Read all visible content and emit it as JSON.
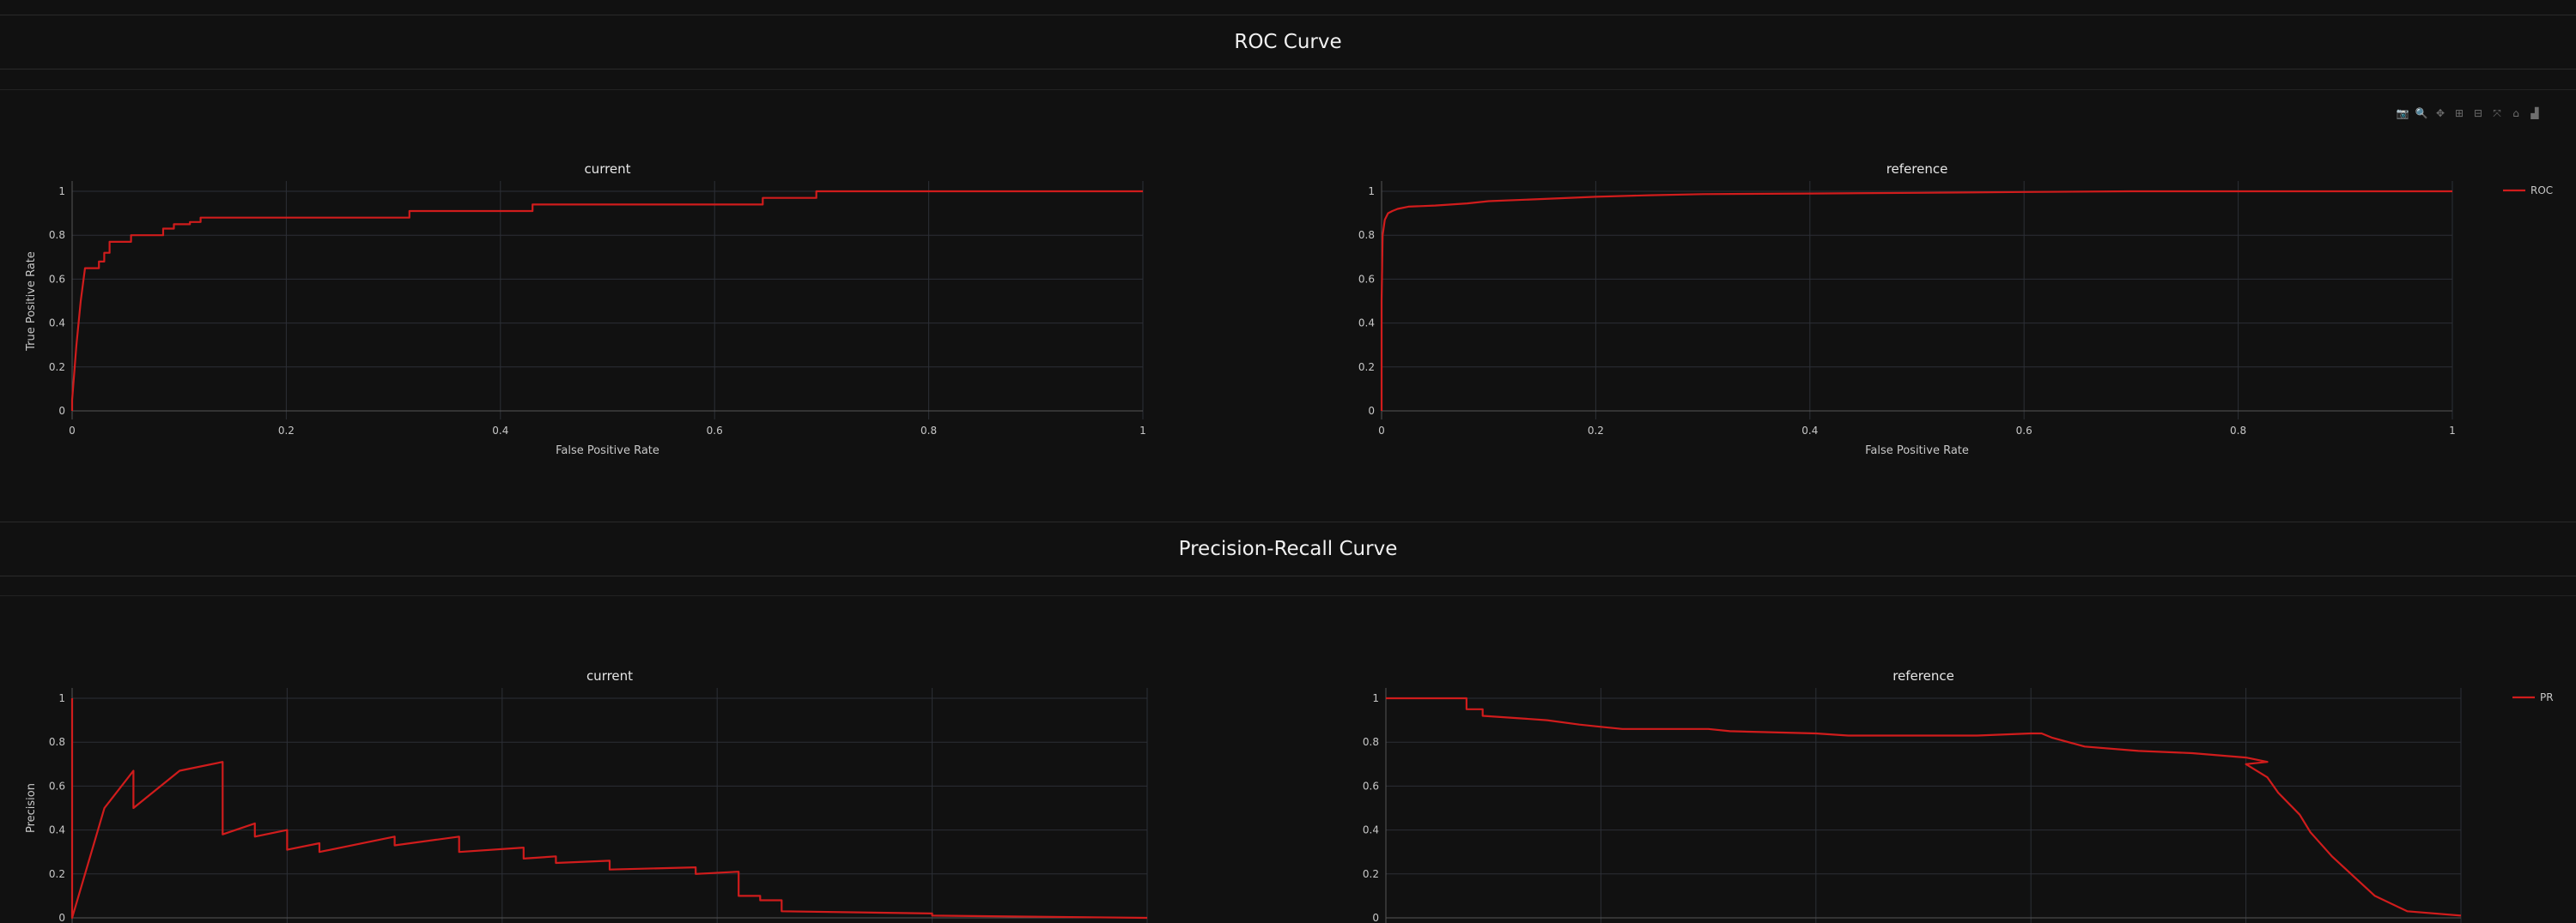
{
  "sections": {
    "roc_title": "ROC Curve",
    "pr_title": "Precision-Recall Curve"
  },
  "modebar": [
    {
      "name": "camera-icon",
      "glyph": "📷",
      "active": false
    },
    {
      "name": "zoom-icon",
      "glyph": "🔍",
      "active": true
    },
    {
      "name": "pan-icon",
      "glyph": "✥",
      "active": false
    },
    {
      "name": "zoom-in-icon",
      "glyph": "⊞",
      "active": false
    },
    {
      "name": "zoom-out-icon",
      "glyph": "⊟",
      "active": false
    },
    {
      "name": "autoscale-icon",
      "glyph": "⤧",
      "active": false
    },
    {
      "name": "home-icon",
      "glyph": "⌂",
      "active": false
    },
    {
      "name": "plotly-logo-icon",
      "glyph": "▟",
      "active": false
    }
  ],
  "colors": {
    "line": "#d01c1c",
    "grid": "#2c2f36",
    "axis": "#c8c8c8"
  },
  "chart_data": [
    {
      "type": "line",
      "id": "roc",
      "subplots": [
        "current",
        "reference"
      ],
      "xlabel": "False Positive Rate",
      "ylabel": "True Positive Rate",
      "xlim": [
        0,
        1
      ],
      "ylim": [
        0,
        1
      ],
      "xticks": [
        "0",
        "0.2",
        "0.4",
        "0.6",
        "0.8",
        "1"
      ],
      "yticks": [
        "0",
        "0.2",
        "0.4",
        "0.6",
        "0.8",
        "1"
      ],
      "grid": true,
      "legend": {
        "label": "ROC",
        "placement": "top-right"
      },
      "series": [
        {
          "subplot": "current",
          "x": [
            0,
            0,
            0.004,
            0.008,
            0.012,
            0.012,
            0.025,
            0.025,
            0.03,
            0.03,
            0.035,
            0.035,
            0.055,
            0.055,
            0.085,
            0.085,
            0.095,
            0.095,
            0.11,
            0.11,
            0.12,
            0.12,
            0.315,
            0.315,
            0.43,
            0.43,
            0.645,
            0.645,
            0.695,
            0.695,
            1
          ],
          "y": [
            0,
            0.05,
            0.3,
            0.5,
            0.65,
            0.65,
            0.65,
            0.68,
            0.68,
            0.72,
            0.72,
            0.77,
            0.77,
            0.8,
            0.8,
            0.83,
            0.83,
            0.85,
            0.85,
            0.86,
            0.86,
            0.88,
            0.88,
            0.91,
            0.91,
            0.94,
            0.94,
            0.97,
            0.97,
            1,
            1
          ]
        },
        {
          "subplot": "reference",
          "x": [
            0,
            0,
            0.001,
            0.003,
            0.006,
            0.01,
            0.015,
            0.025,
            0.05,
            0.08,
            0.1,
            0.15,
            0.2,
            0.25,
            0.3,
            0.4,
            0.5,
            0.6,
            0.7,
            0.8,
            1
          ],
          "y": [
            0,
            0.5,
            0.8,
            0.87,
            0.9,
            0.91,
            0.92,
            0.93,
            0.935,
            0.945,
            0.955,
            0.965,
            0.975,
            0.982,
            0.987,
            0.99,
            0.993,
            0.997,
            1,
            1,
            1
          ]
        }
      ]
    },
    {
      "type": "line",
      "id": "pr",
      "subplots": [
        "current",
        "reference"
      ],
      "xlabel": "",
      "ylabel": "Precision",
      "xlim": [
        0,
        1
      ],
      "ylim": [
        0,
        1
      ],
      "yticks": [
        "0",
        "0.2",
        "0.4",
        "0.6",
        "0.8",
        "1"
      ],
      "grid": true,
      "legend": {
        "label": "PR",
        "placement": "top-right"
      },
      "series": [
        {
          "subplot": "current",
          "x": [
            0,
            0,
            0,
            0.03,
            0.057,
            0.057,
            0.1,
            0.14,
            0.14,
            0.17,
            0.17,
            0.2,
            0.2,
            0.23,
            0.23,
            0.3,
            0.3,
            0.36,
            0.36,
            0.42,
            0.42,
            0.45,
            0.45,
            0.5,
            0.5,
            0.58,
            0.58,
            0.62,
            0.62,
            0.64,
            0.64,
            0.66,
            0.66,
            0.8,
            0.8,
            1
          ],
          "y": [
            1,
            0.35,
            0,
            0.5,
            0.67,
            0.5,
            0.67,
            0.71,
            0.38,
            0.43,
            0.37,
            0.4,
            0.31,
            0.34,
            0.3,
            0.37,
            0.33,
            0.37,
            0.3,
            0.32,
            0.27,
            0.28,
            0.25,
            0.26,
            0.22,
            0.23,
            0.2,
            0.21,
            0.1,
            0.1,
            0.08,
            0.08,
            0.03,
            0.02,
            0.01,
            0
          ]
        },
        {
          "subplot": "reference",
          "x": [
            0,
            0.075,
            0.075,
            0.09,
            0.09,
            0.12,
            0.15,
            0.18,
            0.2,
            0.22,
            0.3,
            0.32,
            0.4,
            0.43,
            0.5,
            0.55,
            0.6,
            0.61,
            0.62,
            0.65,
            0.7,
            0.75,
            0.8,
            0.82,
            0.8,
            0.82,
            0.83,
            0.85,
            0.86,
            0.88,
            0.9,
            0.92,
            0.95,
            1
          ],
          "y": [
            1,
            1,
            0.95,
            0.95,
            0.92,
            0.91,
            0.9,
            0.88,
            0.87,
            0.86,
            0.86,
            0.85,
            0.84,
            0.83,
            0.83,
            0.83,
            0.84,
            0.84,
            0.82,
            0.78,
            0.76,
            0.75,
            0.73,
            0.71,
            0.7,
            0.64,
            0.57,
            0.47,
            0.39,
            0.28,
            0.19,
            0.1,
            0.03,
            0.01
          ]
        }
      ]
    }
  ]
}
